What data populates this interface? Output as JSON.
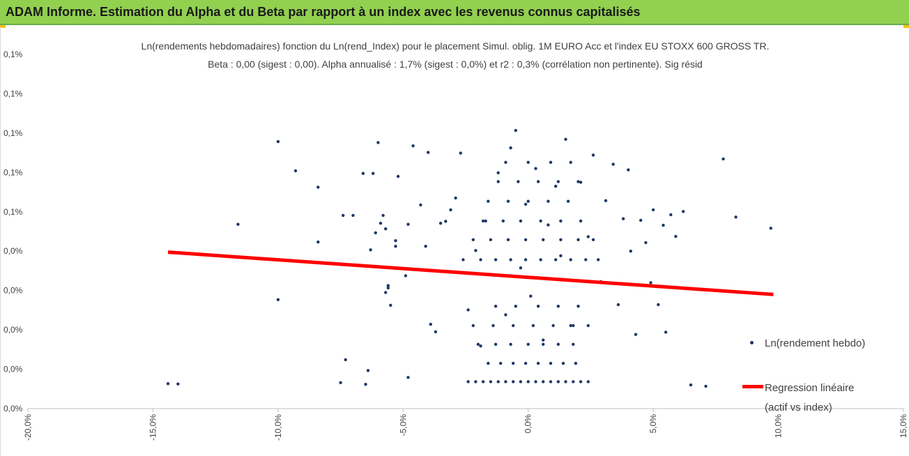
{
  "banner": {
    "title": "ADAM Informe. Estimation du Alpha et du Beta par rapport à un index avec les revenus connus capitalisés",
    "color": "#92d050",
    "corner_color": "#f2c200"
  },
  "chart_data": {
    "type": "scatter",
    "title": "Ln(rendements hebdomadaires) fonction du Ln(rend_Index) pour le placement Simul. oblig. 1M EURO Acc et l'index EU STOXX 600 GROSS TR.",
    "subtitle": "Beta : 0,00 (sigest : 0,00). Alpha annualisé : 1,7% (sigest : 0,0%) et r2 : 0,3% (corrélation non pertinente). Sig résid",
    "xlim": [
      -0.2,
      0.15
    ],
    "ylim": [
      0.00038,
      0.00146
    ],
    "x_ticks": [
      -0.2,
      -0.15,
      -0.1,
      -0.05,
      0.0,
      0.05,
      0.1,
      0.15
    ],
    "x_tick_labels": [
      "-20,0%",
      "-15,0%",
      "-10,0%",
      "-5,0%",
      "0,0%",
      "5,0%",
      "10,0%",
      "15,0%"
    ],
    "y_ticks": [
      0.00038,
      0.0005,
      0.00062,
      0.00074,
      0.00086,
      0.00098,
      0.0011,
      0.00122,
      0.00134,
      0.00146
    ],
    "y_tick_labels": [
      "0,0%",
      "0,0%",
      "0,0%",
      "0,0%",
      "0,0%",
      "0,1%",
      "0,1%",
      "0,1%",
      "0,1%",
      "0,1%"
    ],
    "grid": false,
    "legend_placement": "right",
    "series": [
      {
        "name": "Ln(rendement hebdo)",
        "kind": "scatter",
        "color": "#1f3864",
        "points": [
          [
            -0.144,
            0.000456
          ],
          [
            -0.14,
            0.000455
          ],
          [
            -0.116,
            0.000942
          ],
          [
            -0.1,
            0.001194
          ],
          [
            -0.1,
            0.000712
          ],
          [
            -0.093,
            0.001105
          ],
          [
            -0.084,
            0.001055
          ],
          [
            -0.084,
            0.000888
          ],
          [
            -0.075,
            0.000459
          ],
          [
            -0.074,
            0.000969
          ],
          [
            -0.073,
            0.000529
          ],
          [
            -0.07,
            0.000969
          ],
          [
            -0.066,
            0.001097
          ],
          [
            -0.065,
            0.000454
          ],
          [
            -0.064,
            0.000496
          ],
          [
            -0.063,
            0.000864
          ],
          [
            -0.062,
            0.001097
          ],
          [
            -0.061,
            0.000916
          ],
          [
            -0.06,
            0.001191
          ],
          [
            -0.059,
            0.000945
          ],
          [
            -0.058,
            0.000969
          ],
          [
            -0.057,
            0.000928
          ],
          [
            -0.057,
            0.000734
          ],
          [
            -0.056,
            0.000748
          ],
          [
            -0.056,
            0.000755
          ],
          [
            -0.055,
            0.000695
          ],
          [
            -0.053,
            0.000875
          ],
          [
            -0.053,
            0.000892
          ],
          [
            -0.052,
            0.001088
          ],
          [
            -0.049,
            0.000785
          ],
          [
            -0.048,
            0.000942
          ],
          [
            -0.048,
            0.000475
          ],
          [
            -0.046,
            0.001181
          ],
          [
            -0.043,
            0.001001
          ],
          [
            -0.041,
            0.000875
          ],
          [
            -0.04,
            0.001161
          ],
          [
            -0.039,
            0.000637
          ],
          [
            -0.037,
            0.000614
          ],
          [
            -0.035,
            0.000945
          ],
          [
            -0.033,
            0.000951
          ],
          [
            -0.031,
            0.000986
          ],
          [
            -0.029,
            0.001022
          ],
          [
            -0.027,
            0.001159
          ],
          [
            -0.024,
            0.000681
          ],
          [
            -0.021,
            0.000862
          ],
          [
            -0.019,
            0.000571
          ],
          [
            -0.017,
            0.000952
          ],
          [
            -0.015,
            0.000789
          ],
          [
            -0.012,
            0.001099
          ],
          [
            -0.009,
            0.000666
          ],
          [
            -0.007,
            0.001175
          ],
          [
            -0.005,
            0.001228
          ],
          [
            -0.003,
            0.000809
          ],
          [
            -0.001,
            0.001003
          ],
          [
            0.001,
            0.000723
          ],
          [
            0.003,
            0.001112
          ],
          [
            0.006,
            0.000589
          ],
          [
            0.008,
            0.00094
          ],
          [
            0.011,
            0.001058
          ],
          [
            0.013,
            0.000846
          ],
          [
            0.015,
            0.001201
          ],
          [
            0.018,
            0.000633
          ],
          [
            0.021,
            0.00107
          ],
          [
            0.024,
            0.000904
          ],
          [
            0.026,
            0.001153
          ],
          [
            0.029,
            0.000767
          ],
          [
            0.031,
            0.001014
          ],
          [
            0.034,
            0.001125
          ],
          [
            0.036,
            0.000697
          ],
          [
            0.038,
            0.000959
          ],
          [
            0.04,
            0.001108
          ],
          [
            0.041,
            0.00086
          ],
          [
            0.043,
            0.000606
          ],
          [
            0.045,
            0.000954
          ],
          [
            0.047,
            0.000886
          ],
          [
            0.049,
            0.000764
          ],
          [
            0.05,
            0.000986
          ],
          [
            0.052,
            0.000697
          ],
          [
            0.054,
            0.000939
          ],
          [
            0.055,
            0.000613
          ],
          [
            0.057,
            0.000971
          ],
          [
            0.059,
            0.000905
          ],
          [
            0.062,
            0.000981
          ],
          [
            0.065,
            0.000452
          ],
          [
            0.071,
            0.000448
          ],
          [
            0.078,
            0.001141
          ],
          [
            0.083,
            0.000964
          ],
          [
            0.097,
            0.00093
          ],
          [
            -0.024,
            0.000462
          ],
          [
            -0.021,
            0.000462
          ],
          [
            -0.018,
            0.000462
          ],
          [
            -0.015,
            0.000462
          ],
          [
            -0.012,
            0.000462
          ],
          [
            -0.009,
            0.000462
          ],
          [
            -0.006,
            0.000462
          ],
          [
            -0.003,
            0.000462
          ],
          [
            0.0,
            0.000462
          ],
          [
            0.003,
            0.000462
          ],
          [
            0.006,
            0.000462
          ],
          [
            0.009,
            0.000462
          ],
          [
            0.012,
            0.000462
          ],
          [
            0.015,
            0.000462
          ],
          [
            0.018,
            0.000462
          ],
          [
            0.021,
            0.000462
          ],
          [
            0.024,
            0.000462
          ],
          [
            -0.016,
            0.000518
          ],
          [
            -0.011,
            0.000518
          ],
          [
            -0.006,
            0.000518
          ],
          [
            -0.001,
            0.000518
          ],
          [
            0.004,
            0.000518
          ],
          [
            0.009,
            0.000518
          ],
          [
            0.014,
            0.000518
          ],
          [
            0.019,
            0.000518
          ],
          [
            -0.02,
            0.000576
          ],
          [
            -0.013,
            0.000576
          ],
          [
            -0.007,
            0.000576
          ],
          [
            0.0,
            0.000576
          ],
          [
            0.006,
            0.000576
          ],
          [
            0.012,
            0.000576
          ],
          [
            0.018,
            0.000576
          ],
          [
            -0.022,
            0.000633
          ],
          [
            -0.014,
            0.000633
          ],
          [
            -0.006,
            0.000633
          ],
          [
            0.002,
            0.000633
          ],
          [
            0.01,
            0.000633
          ],
          [
            0.017,
            0.000633
          ],
          [
            0.024,
            0.000633
          ],
          [
            -0.013,
            0.000692
          ],
          [
            -0.005,
            0.000692
          ],
          [
            0.004,
            0.000692
          ],
          [
            0.012,
            0.000692
          ],
          [
            0.02,
            0.000692
          ],
          [
            -0.026,
            0.000834
          ],
          [
            -0.019,
            0.000834
          ],
          [
            -0.013,
            0.000834
          ],
          [
            -0.007,
            0.000834
          ],
          [
            -0.001,
            0.000834
          ],
          [
            0.005,
            0.000834
          ],
          [
            0.011,
            0.000834
          ],
          [
            0.017,
            0.000834
          ],
          [
            0.023,
            0.000834
          ],
          [
            0.028,
            0.000834
          ],
          [
            -0.022,
            0.000895
          ],
          [
            -0.015,
            0.000895
          ],
          [
            -0.008,
            0.000895
          ],
          [
            -0.001,
            0.000895
          ],
          [
            0.006,
            0.000895
          ],
          [
            0.013,
            0.000895
          ],
          [
            0.02,
            0.000895
          ],
          [
            0.026,
            0.000895
          ],
          [
            -0.018,
            0.000952
          ],
          [
            -0.01,
            0.000952
          ],
          [
            -0.003,
            0.000952
          ],
          [
            0.005,
            0.000952
          ],
          [
            0.013,
            0.000952
          ],
          [
            0.021,
            0.000952
          ],
          [
            -0.016,
            0.001012
          ],
          [
            -0.008,
            0.001012
          ],
          [
            0.0,
            0.001012
          ],
          [
            0.008,
            0.001012
          ],
          [
            0.016,
            0.001012
          ],
          [
            -0.012,
            0.001072
          ],
          [
            -0.004,
            0.001072
          ],
          [
            0.004,
            0.001072
          ],
          [
            0.012,
            0.001072
          ],
          [
            0.02,
            0.001072
          ],
          [
            -0.009,
            0.001131
          ],
          [
            0.0,
            0.001131
          ],
          [
            0.009,
            0.001131
          ],
          [
            0.017,
            0.001131
          ]
        ]
      },
      {
        "name": "Regression linéaire",
        "name_line2": "(actif vs index)",
        "kind": "line",
        "color": "#ff0000",
        "points": [
          [
            -0.144,
            0.000857
          ],
          [
            0.098,
            0.000728
          ]
        ]
      }
    ]
  }
}
